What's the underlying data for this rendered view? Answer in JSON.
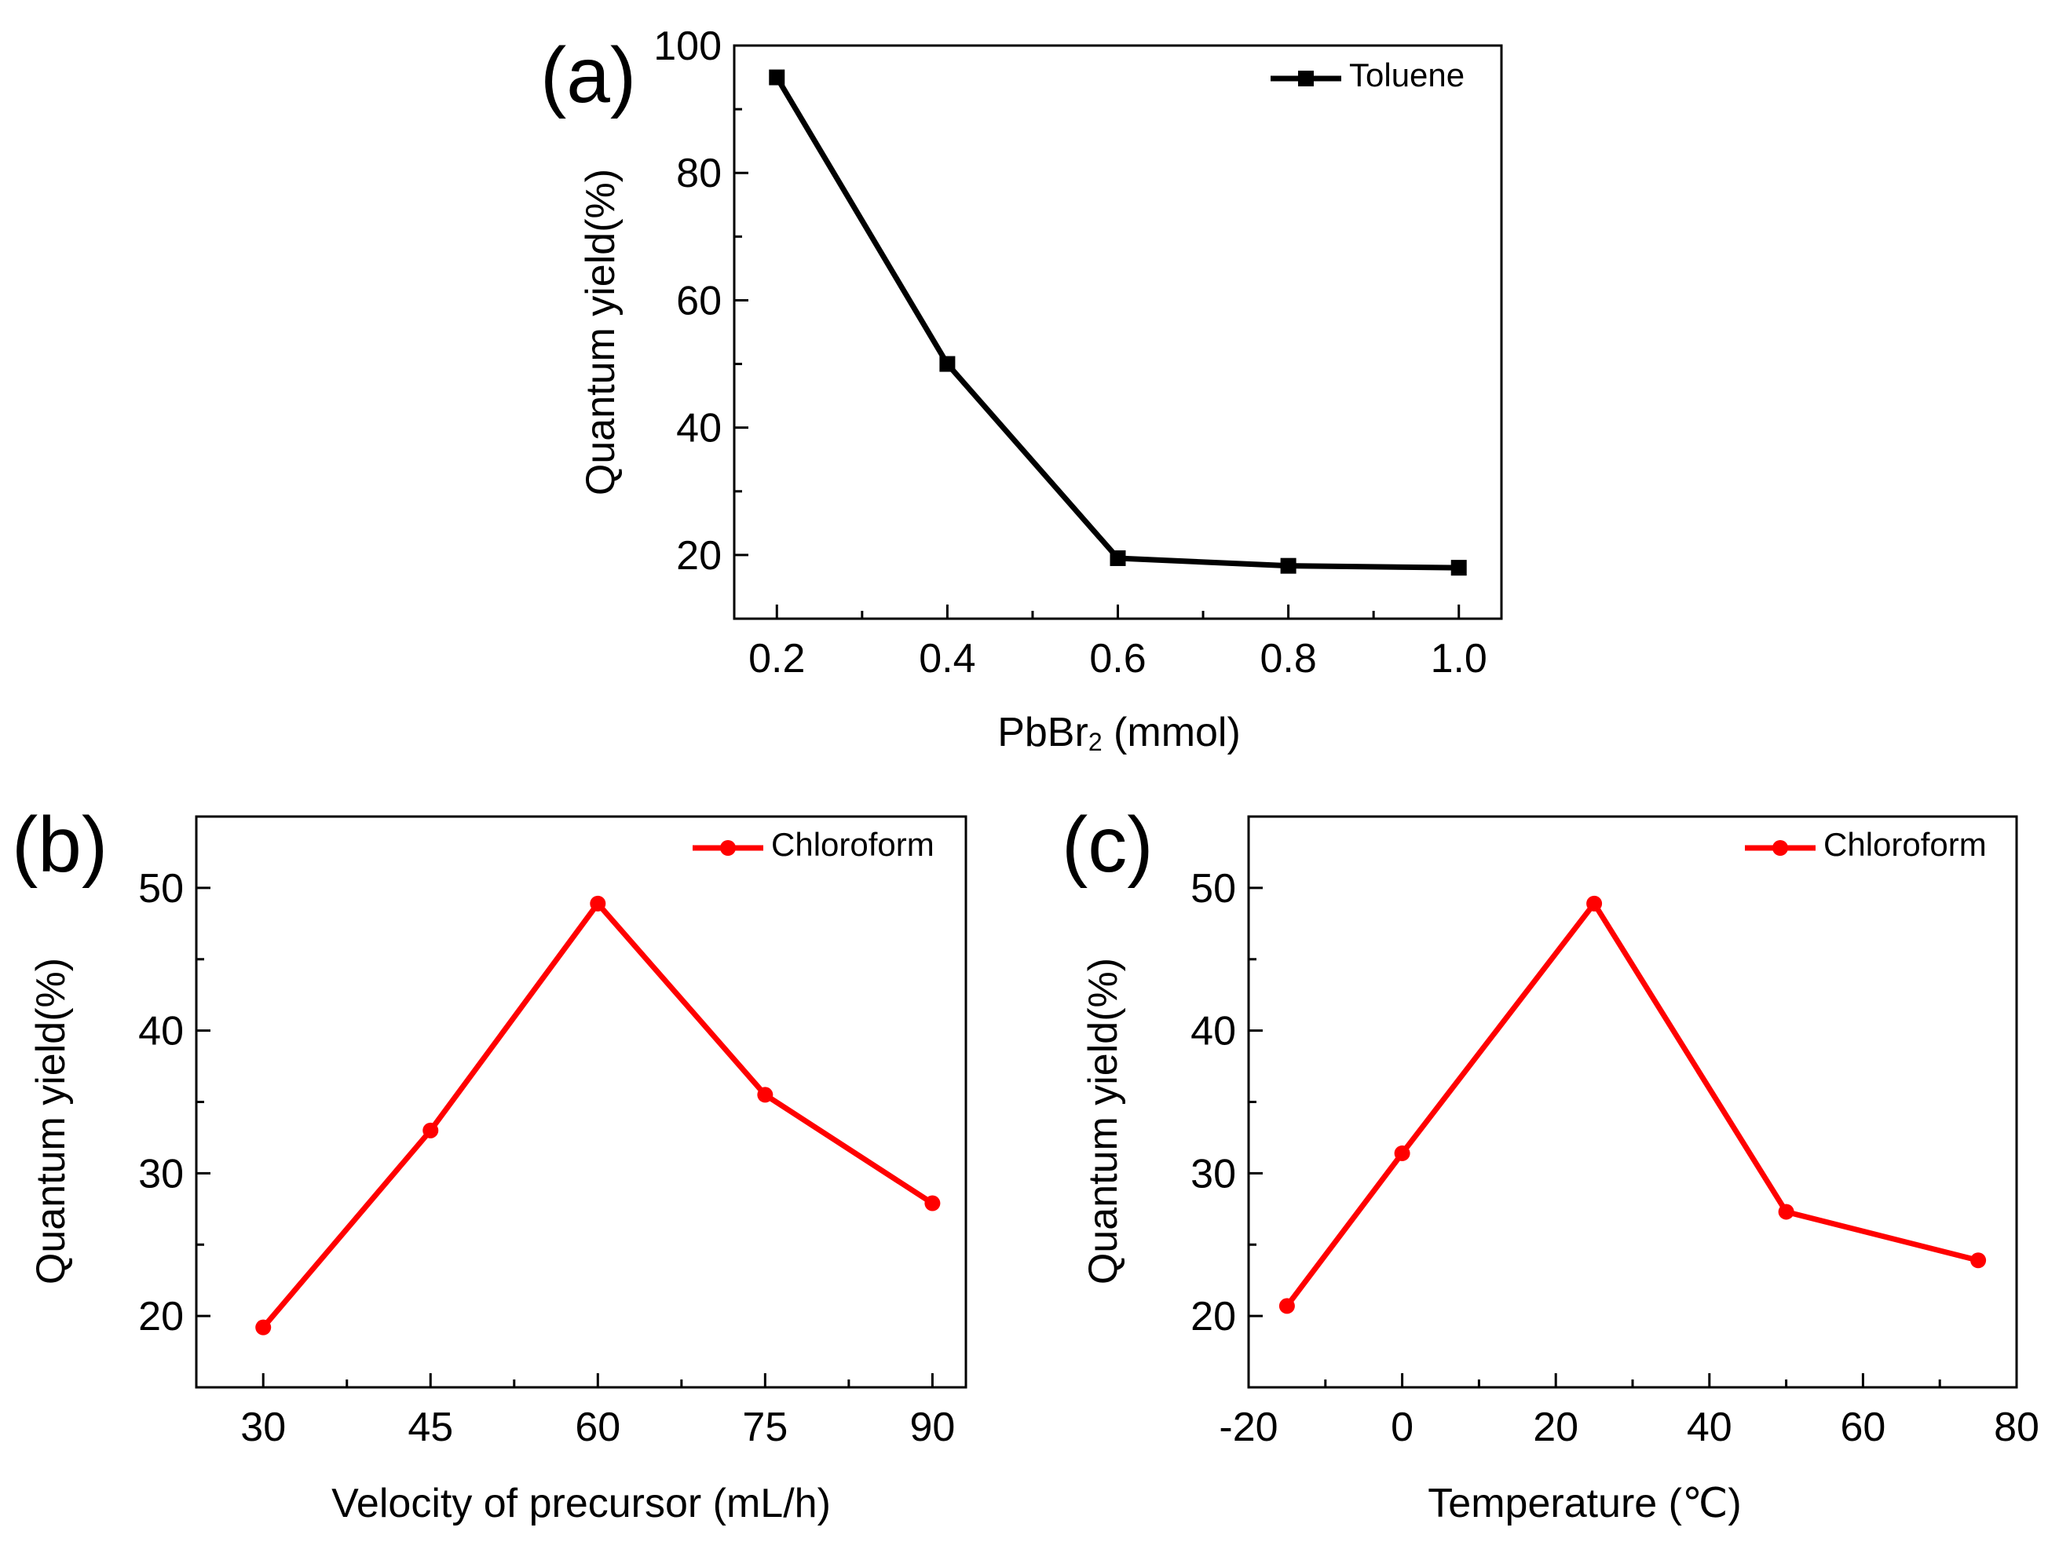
{
  "chart_data": [
    {
      "id": "a",
      "panel_label": "(a)",
      "type": "line",
      "marker": "square",
      "color": "#000000",
      "xlabel_main": "PbBr",
      "xlabel_sub": "2",
      "xlabel_rest": " (mmol)",
      "ylabel": "Quantum yield(%)",
      "xlim": [
        0.15,
        1.05
      ],
      "ylim": [
        10,
        100
      ],
      "xticks": [
        0.2,
        0.4,
        0.6,
        0.8,
        1.0
      ],
      "xtick_labels": [
        "0.2",
        "0.4",
        "0.6",
        "0.8",
        "1.0"
      ],
      "xminor": [
        0.3,
        0.5,
        0.7,
        0.9
      ],
      "yticks": [
        20,
        40,
        60,
        80,
        100
      ],
      "ytick_labels": [
        "20",
        "40",
        "60",
        "80",
        "100"
      ],
      "yminor": [
        30,
        50,
        70,
        90
      ],
      "legend": "Toluene",
      "legend_position": "top-right",
      "series": [
        {
          "name": "Toluene",
          "x": [
            0.2,
            0.4,
            0.6,
            0.8,
            1.0
          ],
          "y": [
            95,
            50,
            19.5,
            18.3,
            18.0
          ]
        }
      ]
    },
    {
      "id": "b",
      "panel_label": "(b)",
      "type": "line",
      "marker": "circle",
      "color": "#ff0000",
      "xlabel": "Velocity of precursor (mL/h)",
      "ylabel": "Quantum yield(%)",
      "xlim": [
        24,
        93
      ],
      "ylim": [
        15,
        55
      ],
      "xticks": [
        30,
        45,
        60,
        75,
        90
      ],
      "xtick_labels": [
        "30",
        "45",
        "60",
        "75",
        "90"
      ],
      "xminor": [
        37.5,
        52.5,
        67.5,
        82.5
      ],
      "yticks": [
        20,
        30,
        40,
        50
      ],
      "ytick_labels": [
        "20",
        "30",
        "40",
        "50"
      ],
      "yminor": [
        25,
        35,
        45
      ],
      "legend": "Chloroform",
      "legend_position": "top-right",
      "series": [
        {
          "name": "Chloroform",
          "x": [
            30,
            45,
            60,
            75,
            90
          ],
          "y": [
            19.2,
            33.0,
            48.9,
            35.5,
            27.9
          ]
        }
      ]
    },
    {
      "id": "c",
      "panel_label": "(c)",
      "type": "line",
      "marker": "circle",
      "color": "#ff0000",
      "xlabel": "Temperature (℃)",
      "ylabel": "Quantum yield(%)",
      "xlim": [
        -20,
        80
      ],
      "ylim": [
        15,
        55
      ],
      "xticks": [
        -20,
        0,
        20,
        40,
        60,
        80
      ],
      "xtick_labels": [
        "-20",
        "0",
        "20",
        "40",
        "60",
        "80"
      ],
      "xminor": [
        -10,
        10,
        30,
        50,
        70
      ],
      "yticks": [
        20,
        30,
        40,
        50
      ],
      "ytick_labels": [
        "20",
        "30",
        "40",
        "50"
      ],
      "yminor": [
        25,
        35,
        45
      ],
      "legend": "Chloroform",
      "legend_position": "top-right",
      "series": [
        {
          "name": "Chloroform",
          "x": [
            -15,
            0,
            25,
            50,
            75
          ],
          "y": [
            20.7,
            31.4,
            48.9,
            27.3,
            23.9
          ]
        }
      ]
    }
  ]
}
